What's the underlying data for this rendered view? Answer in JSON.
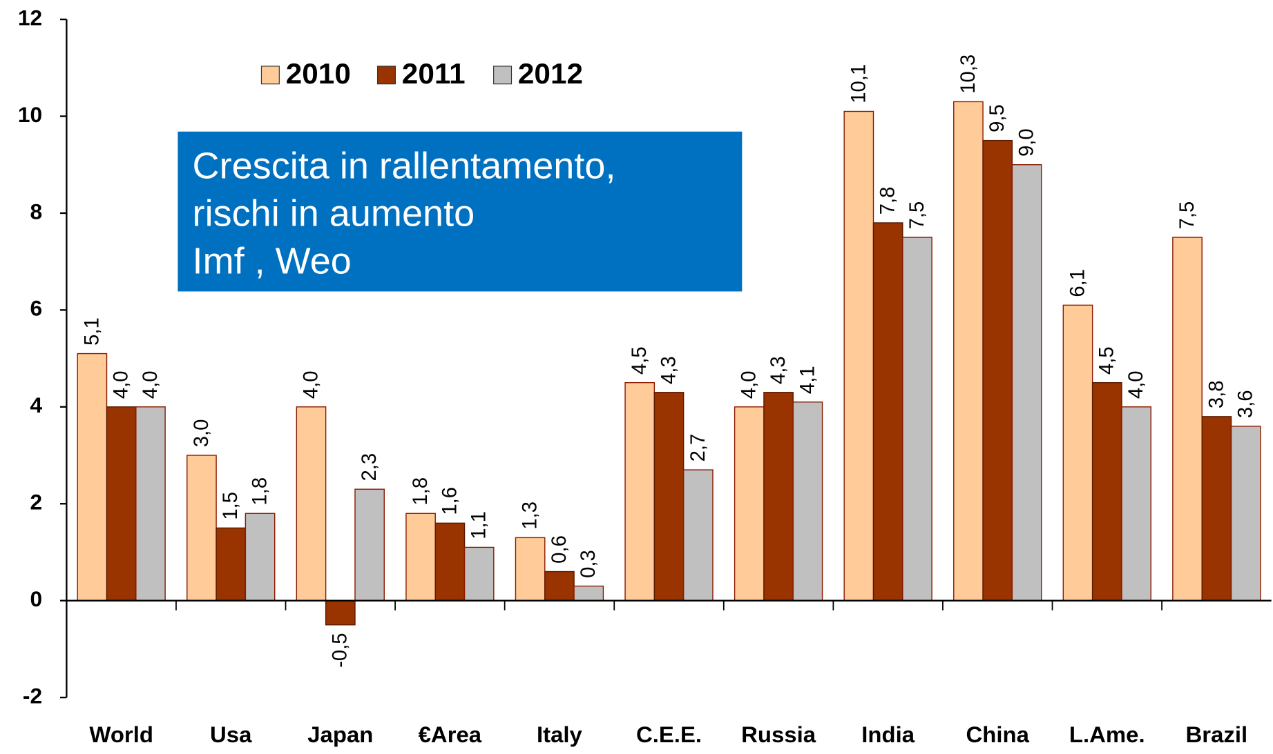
{
  "chart_data": {
    "type": "bar",
    "categories": [
      "World",
      "Usa",
      "Japan",
      "€Area",
      "Italy",
      "C.E.E.",
      "Russia",
      "India",
      "China",
      "L.Ame.",
      "Brazil"
    ],
    "series": [
      {
        "name": "2010",
        "color": "#ffcc99",
        "values": [
          5.1,
          3.0,
          4.0,
          1.8,
          1.3,
          4.5,
          4.0,
          10.1,
          10.3,
          6.1,
          7.5
        ],
        "value_labels": [
          "5,1",
          "3,0",
          "4,0",
          "1,8",
          "1,3",
          "4,5",
          "4,0",
          "10,1",
          "10,3",
          "6,1",
          "7,5"
        ]
      },
      {
        "name": "2011",
        "color": "#993300",
        "values": [
          4.0,
          1.5,
          -0.5,
          1.6,
          0.6,
          4.3,
          4.3,
          7.8,
          9.5,
          4.5,
          3.8
        ],
        "value_labels": [
          "4,0",
          "1,5",
          "-0,5",
          "1,6",
          "0,6",
          "4,3",
          "4,3",
          "7,8",
          "9,5",
          "4,5",
          "3,8"
        ]
      },
      {
        "name": "2012",
        "color": "#c0c0c0",
        "values": [
          4.0,
          1.8,
          2.3,
          1.1,
          0.3,
          2.7,
          4.1,
          7.5,
          9.0,
          4.0,
          3.6
        ],
        "value_labels": [
          "4,0",
          "1,8",
          "2,3",
          "1,1",
          "0,3",
          "2,7",
          "4,1",
          "7,5",
          "9,0",
          "4,0",
          "3,6"
        ]
      }
    ],
    "annotation": [
      "Crescita in rallentamento,",
      "rischi in aumento",
      "Imf , Weo"
    ],
    "ylim": [
      -2,
      12
    ],
    "yticks": [
      -2,
      0,
      2,
      4,
      6,
      8,
      10,
      12
    ],
    "grid": false,
    "legend": "top"
  }
}
